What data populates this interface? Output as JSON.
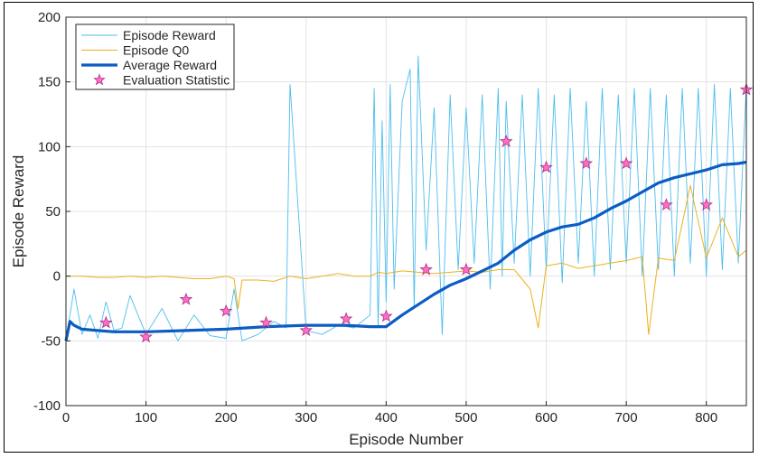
{
  "chart_data": {
    "type": "line",
    "xlabel": "Episode Number",
    "ylabel": "Episode Reward",
    "xlim": [
      0,
      850
    ],
    "ylim": [
      -100,
      200
    ],
    "xticks": [
      0,
      100,
      200,
      300,
      400,
      500,
      600,
      700,
      800
    ],
    "yticks": [
      -100,
      -50,
      0,
      50,
      100,
      150,
      200
    ],
    "xtick_labels": [
      "0",
      "100",
      "200",
      "300",
      "400",
      "500",
      "600",
      "700",
      "800"
    ],
    "ytick_labels": [
      "-100",
      "-50",
      "0",
      "50",
      "100",
      "150",
      "200"
    ],
    "grid": true,
    "legend_position": "top-left",
    "colors": {
      "episode_reward": "#4dbeee",
      "episode_q0": "#edb120",
      "average_reward": "#0b5dc3",
      "evaluation_statistic": "#ff6ec7"
    },
    "series": [
      {
        "name": "Episode Reward",
        "x": [
          0,
          10,
          20,
          30,
          40,
          50,
          60,
          70,
          80,
          100,
          120,
          140,
          160,
          180,
          200,
          210,
          220,
          240,
          260,
          275,
          280,
          300,
          320,
          340,
          360,
          380,
          385,
          390,
          395,
          400,
          405,
          410,
          420,
          430,
          435,
          440,
          450,
          460,
          470,
          480,
          490,
          500,
          510,
          520,
          530,
          540,
          545,
          550,
          560,
          570,
          580,
          590,
          600,
          610,
          620,
          630,
          640,
          650,
          660,
          670,
          680,
          690,
          700,
          710,
          720,
          730,
          740,
          750,
          760,
          770,
          780,
          790,
          800,
          810,
          820,
          830,
          840,
          850
        ],
        "y": [
          -50,
          -10,
          -45,
          -30,
          -48,
          -20,
          -42,
          -40,
          -15,
          -45,
          -25,
          -50,
          -30,
          -46,
          -48,
          -10,
          -50,
          -45,
          -35,
          -40,
          148,
          -42,
          -45,
          -38,
          -40,
          -30,
          145,
          -40,
          120,
          -20,
          148,
          -10,
          135,
          160,
          -25,
          170,
          20,
          130,
          -45,
          140,
          5,
          130,
          10,
          140,
          -10,
          145,
          0,
          135,
          10,
          140,
          0,
          145,
          5,
          140,
          -5,
          145,
          10,
          135,
          0,
          145,
          5,
          140,
          10,
          145,
          0,
          145,
          5,
          140,
          0,
          145,
          10,
          145,
          0,
          148,
          5,
          145,
          10,
          148
        ]
      },
      {
        "name": "Episode Q0",
        "x": [
          0,
          20,
          40,
          60,
          80,
          100,
          120,
          140,
          160,
          180,
          200,
          210,
          215,
          220,
          240,
          260,
          280,
          300,
          320,
          340,
          360,
          380,
          390,
          400,
          420,
          440,
          460,
          480,
          500,
          520,
          540,
          560,
          580,
          590,
          600,
          620,
          640,
          660,
          680,
          700,
          720,
          728,
          740,
          760,
          780,
          800,
          820,
          840,
          850
        ],
        "y": [
          0,
          0,
          -1,
          -1,
          0,
          -1,
          0,
          -1,
          -2,
          -2,
          0,
          -2,
          -25,
          -3,
          -3,
          -4,
          0,
          -2,
          0,
          2,
          0,
          0,
          3,
          2,
          4,
          3,
          2,
          3,
          4,
          3,
          5,
          5,
          -10,
          -40,
          8,
          10,
          6,
          8,
          10,
          12,
          15,
          -45,
          14,
          12,
          70,
          14,
          45,
          15,
          20
        ]
      },
      {
        "name": "Average Reward",
        "x": [
          0,
          5,
          10,
          20,
          40,
          60,
          80,
          100,
          150,
          200,
          250,
          300,
          350,
          380,
          400,
          420,
          440,
          460,
          480,
          500,
          520,
          540,
          560,
          580,
          600,
          620,
          640,
          660,
          680,
          700,
          720,
          740,
          760,
          780,
          800,
          820,
          840,
          850
        ],
        "y": [
          -50,
          -35,
          -38,
          -41,
          -42,
          -43,
          -43,
          -43,
          -42,
          -41,
          -39,
          -38,
          -38,
          -39,
          -39,
          -30,
          -22,
          -14,
          -7,
          -2,
          4,
          10,
          20,
          28,
          34,
          38,
          40,
          45,
          52,
          58,
          65,
          72,
          76,
          79,
          82,
          86,
          87,
          88
        ]
      },
      {
        "name": "Evaluation Statistic",
        "x": [
          50,
          100,
          150,
          200,
          250,
          300,
          350,
          400,
          450,
          500,
          550,
          600,
          650,
          700,
          750,
          800,
          850
        ],
        "y": [
          -36,
          -47,
          -18,
          -27,
          -36,
          -42,
          -33,
          -31,
          5,
          5,
          104,
          84,
          87,
          87,
          55,
          55,
          144
        ]
      }
    ]
  }
}
